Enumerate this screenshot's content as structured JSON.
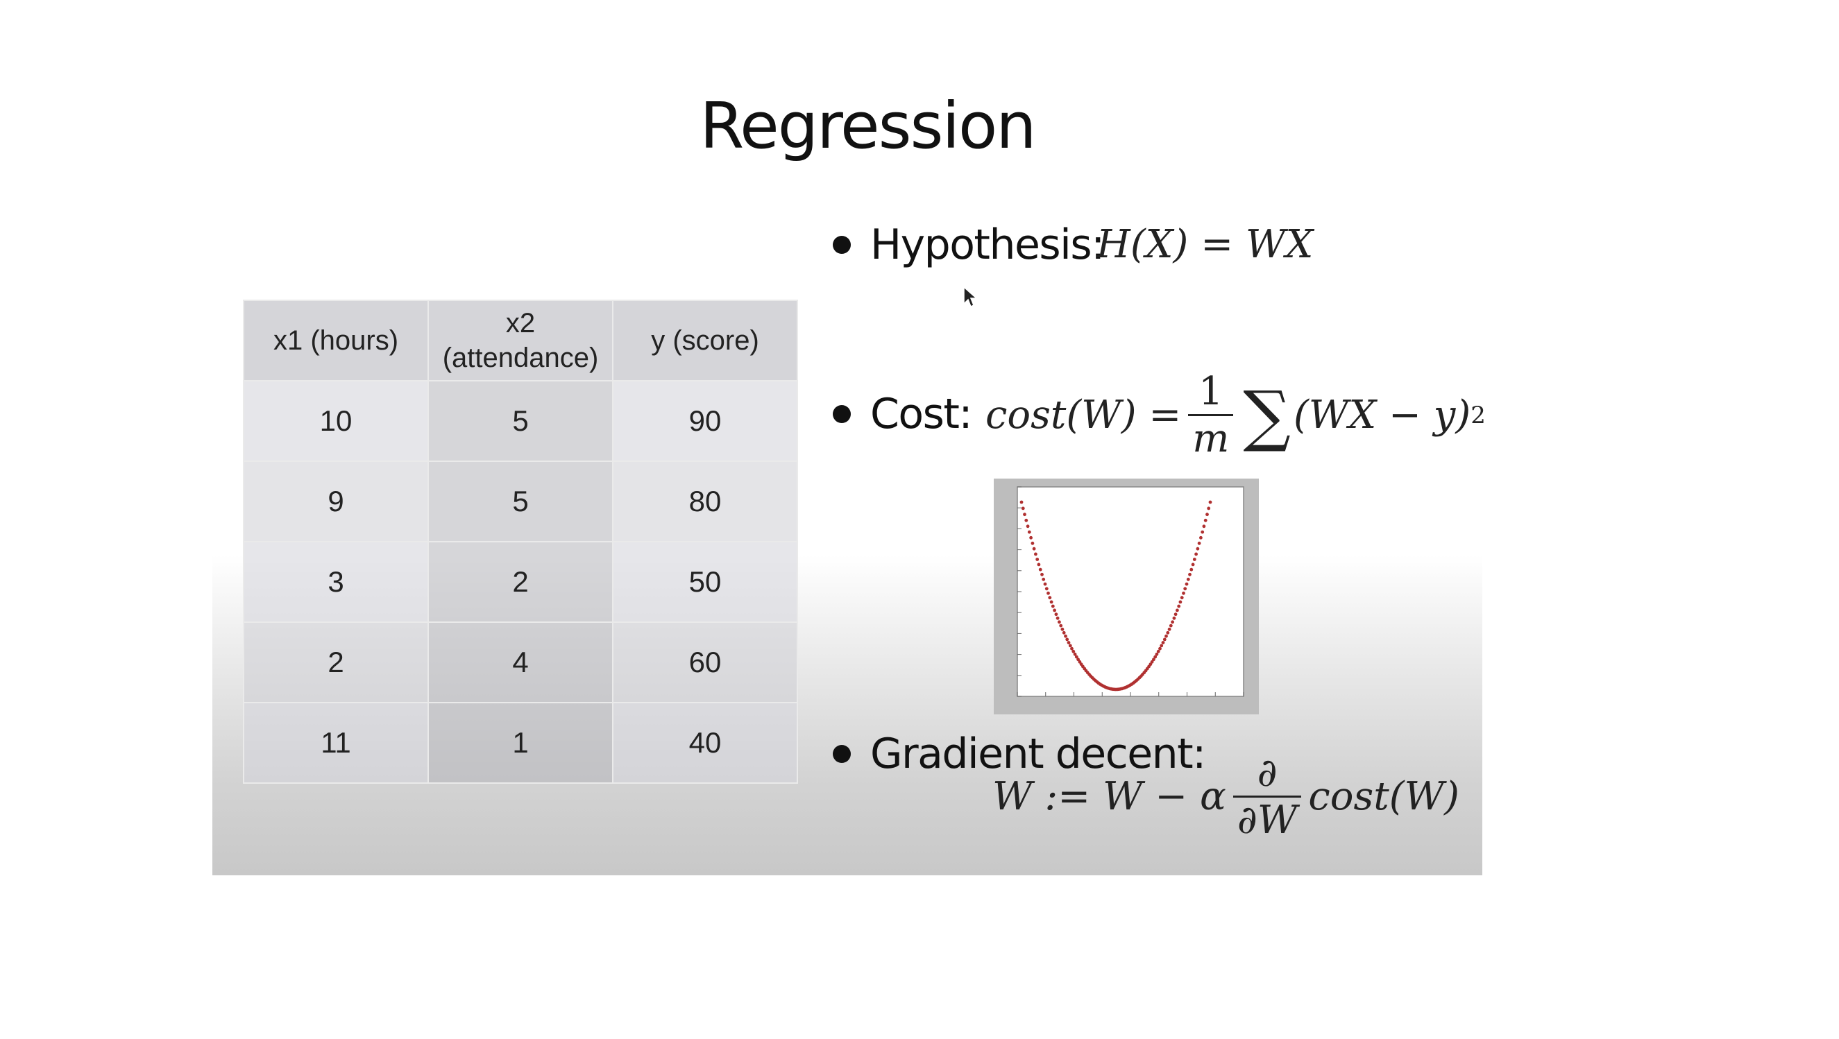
{
  "slide": {
    "title": "Regression",
    "table": {
      "headers": [
        "x1 (hours)",
        "x2\n(attendance)",
        "y (score)"
      ],
      "rows": [
        [
          "10",
          "5",
          "90"
        ],
        [
          "9",
          "5",
          "80"
        ],
        [
          "3",
          "2",
          "50"
        ],
        [
          "2",
          "4",
          "60"
        ],
        [
          "11",
          "1",
          "40"
        ]
      ]
    },
    "bullets": {
      "hypothesis": {
        "label": "Hypothesis:",
        "formula": "H(X) = WX"
      },
      "cost": {
        "label": "Cost:",
        "lhs": "cost(W) =",
        "frac_num": "1",
        "frac_den": "m",
        "sum": "∑",
        "rhs": "(WX − y)",
        "power": "2"
      },
      "gradient": {
        "label": "Gradient decent:",
        "lhs": "W := W − α",
        "frac_num": "∂",
        "frac_den": "∂W",
        "rhs": "cost(W)"
      }
    },
    "colors": {
      "curve": "#b03030",
      "plot_frame": "#bdbdbd"
    }
  }
}
